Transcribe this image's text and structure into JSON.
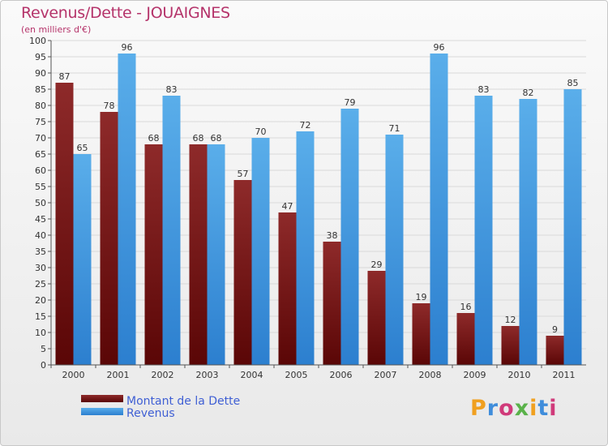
{
  "header": {
    "title": "Revenus/Dette - JOUAIGNES",
    "subtitle": "(en milliers d'€)"
  },
  "logo": {
    "text": "Proxiti",
    "colors": [
      "#f0a020",
      "#3f8ddb",
      "#d03a7a",
      "#5ab24a",
      "#f0a020",
      "#3f8ddb",
      "#d03a7a"
    ]
  },
  "chart_data": {
    "type": "bar",
    "categories": [
      "2000",
      "2001",
      "2002",
      "2003",
      "2004",
      "2005",
      "2006",
      "2007",
      "2008",
      "2009",
      "2010",
      "2011"
    ],
    "series": [
      {
        "name": "Montant de la Dette",
        "color": "#7a1a1a",
        "values": [
          87,
          78,
          68,
          68,
          57,
          47,
          38,
          29,
          19,
          16,
          12,
          9
        ]
      },
      {
        "name": "Revenus",
        "color": "#3d95e0",
        "values": [
          65,
          96,
          83,
          68,
          70,
          72,
          79,
          71,
          96,
          83,
          82,
          85
        ]
      }
    ],
    "ylim": [
      0,
      100
    ],
    "yticks": [
      "0",
      "5",
      "10",
      "15",
      "20",
      "25",
      "30",
      "35",
      "40",
      "45",
      "50",
      "55",
      "60",
      "65",
      "70",
      "75",
      "80",
      "85",
      "90",
      "95",
      "100"
    ],
    "grid": true,
    "legend_position": "bottom-left"
  }
}
